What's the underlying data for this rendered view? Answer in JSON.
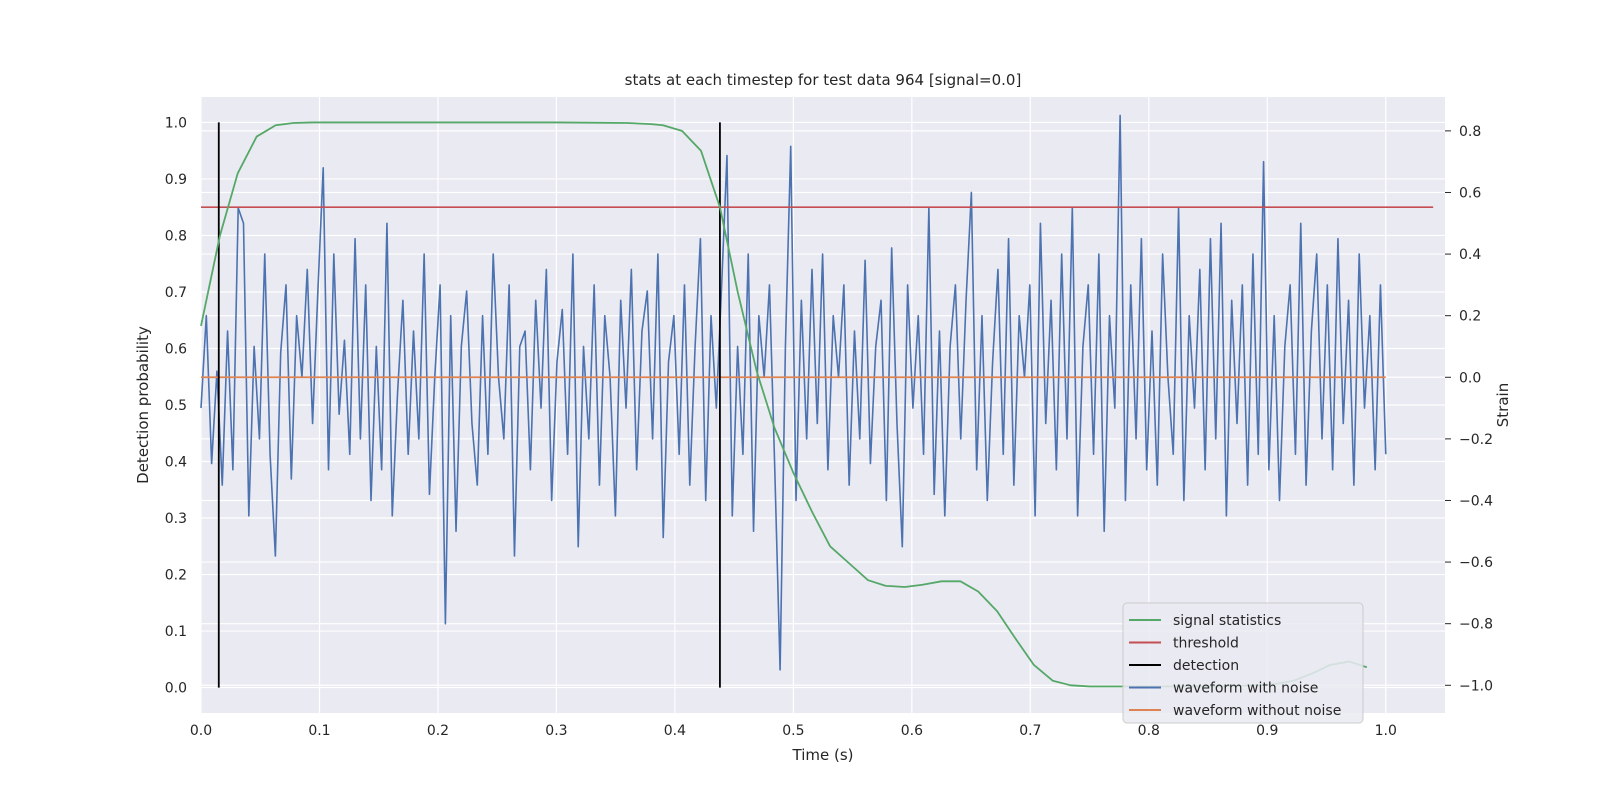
{
  "chart_data": {
    "type": "line",
    "title": "stats at each timestep for test data 964 [signal=0.0]",
    "xlabel": "Time (s)",
    "ylabel_left": "Detection probability",
    "ylabel_right": "Strain",
    "xlim": [
      0.0,
      1.05
    ],
    "ylim_left": [
      -0.045,
      1.045
    ],
    "ylim_right": [
      -1.09,
      0.91
    ],
    "x_ticks": [
      "0.0",
      "0.1",
      "0.2",
      "0.3",
      "0.4",
      "0.5",
      "0.6",
      "0.7",
      "0.8",
      "0.9",
      "1.0"
    ],
    "y_left_ticks": [
      "0.0",
      "0.1",
      "0.2",
      "0.3",
      "0.4",
      "0.5",
      "0.6",
      "0.7",
      "0.8",
      "0.9",
      "1.0"
    ],
    "y_right_ticks": [
      "−1.0",
      "−0.8",
      "−0.6",
      "−0.4",
      "−0.2",
      "0.0",
      "0.2",
      "0.4",
      "0.6",
      "0.8"
    ],
    "grid": true,
    "legend_position": "lower-right",
    "series": [
      {
        "name": "signal statistics",
        "axis": "left",
        "color": "#55a868",
        "x": [
          0.0,
          0.016,
          0.031,
          0.047,
          0.063,
          0.078,
          0.094,
          0.125,
          0.2,
          0.3,
          0.36,
          0.38,
          0.39,
          0.406,
          0.422,
          0.438,
          0.453,
          0.469,
          0.484,
          0.5,
          0.516,
          0.531,
          0.547,
          0.563,
          0.578,
          0.594,
          0.609,
          0.625,
          0.641,
          0.656,
          0.672,
          0.688,
          0.703,
          0.719,
          0.734,
          0.75,
          0.766,
          0.781,
          0.797,
          0.813,
          0.828,
          0.844,
          0.859,
          0.875,
          0.891,
          0.906,
          0.922,
          0.938,
          0.953,
          0.969,
          0.984
        ],
        "values": [
          0.64,
          0.8,
          0.91,
          0.975,
          0.995,
          0.999,
          1.0,
          1.0,
          1.0,
          1.0,
          0.999,
          0.997,
          0.995,
          0.985,
          0.95,
          0.85,
          0.7,
          0.56,
          0.46,
          0.38,
          0.31,
          0.25,
          0.22,
          0.19,
          0.18,
          0.178,
          0.182,
          0.188,
          0.188,
          0.17,
          0.135,
          0.085,
          0.04,
          0.012,
          0.004,
          0.002,
          0.002,
          0.002,
          0.002,
          0.002,
          0.002,
          0.002,
          0.002,
          0.003,
          0.004,
          0.006,
          0.012,
          0.025,
          0.04,
          0.046,
          0.036
        ]
      },
      {
        "name": "threshold",
        "axis": "left",
        "color": "#c44e52",
        "x": [
          0.0,
          1.04
        ],
        "values": [
          0.85,
          0.85
        ]
      },
      {
        "name": "detection",
        "axis": "left",
        "color": "#000000",
        "x": [
          0.015,
          0.438
        ],
        "ymin": 0.0,
        "ymax": 1.0
      },
      {
        "name": "waveform with noise",
        "axis": "right",
        "color": "#4c72b0",
        "x_start": 0.0,
        "x_end": 1.0,
        "values": [
          -0.1,
          0.2,
          -0.28,
          0.02,
          -0.35,
          0.15,
          -0.3,
          0.55,
          0.5,
          -0.45,
          0.1,
          -0.2,
          0.4,
          -0.25,
          -0.58,
          0.08,
          0.3,
          -0.33,
          0.2,
          0.0,
          0.35,
          -0.15,
          0.28,
          0.68,
          -0.3,
          0.4,
          -0.12,
          0.12,
          -0.25,
          0.45,
          -0.2,
          0.3,
          -0.4,
          0.1,
          -0.3,
          0.5,
          -0.45,
          -0.05,
          0.25,
          -0.25,
          0.15,
          -0.2,
          0.4,
          -0.38,
          0.0,
          0.3,
          -0.8,
          0.2,
          -0.5,
          0.1,
          0.28,
          -0.15,
          -0.35,
          0.2,
          -0.25,
          0.4,
          0.0,
          -0.2,
          0.3,
          -0.58,
          0.1,
          0.15,
          -0.3,
          0.25,
          -0.1,
          0.35,
          -0.4,
          0.05,
          0.22,
          -0.25,
          0.4,
          -0.55,
          0.1,
          -0.2,
          0.3,
          -0.35,
          0.2,
          0.0,
          -0.45,
          0.25,
          -0.1,
          0.35,
          -0.3,
          0.15,
          0.28,
          -0.2,
          0.4,
          -0.52,
          0.05,
          0.2,
          -0.25,
          0.3,
          -0.35,
          0.1,
          0.45,
          -0.4,
          0.2,
          -0.1,
          0.3,
          0.72,
          -0.45,
          0.1,
          -0.25,
          0.4,
          -0.5,
          0.2,
          0.0,
          0.3,
          -0.3,
          -0.95,
          0.1,
          0.75,
          -0.4,
          0.25,
          -0.2,
          0.35,
          -0.15,
          0.4,
          -0.3,
          0.2,
          0.0,
          0.3,
          -0.35,
          0.15,
          -0.2,
          0.38,
          -0.28,
          0.1,
          0.25,
          -0.4,
          0.42,
          -0.15,
          -0.55,
          0.3,
          -0.1,
          0.2,
          -0.25,
          0.55,
          -0.38,
          0.15,
          -0.45,
          0.1,
          0.3,
          -0.2,
          0.25,
          0.6,
          -0.3,
          0.2,
          -0.4,
          0.05,
          0.35,
          -0.25,
          0.45,
          -0.35,
          0.2,
          0.0,
          0.3,
          -0.45,
          0.5,
          -0.15,
          0.25,
          -0.3,
          0.4,
          -0.2,
          0.55,
          -0.45,
          0.1,
          0.3,
          -0.25,
          0.4,
          -0.5,
          0.2,
          -0.1,
          0.85,
          -0.4,
          0.3,
          -0.2,
          0.45,
          -0.3,
          0.15,
          -0.35,
          0.4,
          0.0,
          -0.25,
          0.55,
          -0.4,
          0.2,
          -0.1,
          0.35,
          -0.3,
          0.45,
          -0.2,
          0.5,
          -0.45,
          0.25,
          -0.15,
          0.3,
          -0.35,
          0.4,
          -0.25,
          0.7,
          -0.3,
          0.2,
          -0.4,
          0.1,
          0.3,
          -0.25,
          0.5,
          -0.35,
          0.15,
          0.4,
          -0.2,
          0.3,
          -0.3,
          0.45,
          -0.15,
          0.25,
          -0.35,
          0.4,
          -0.1,
          0.2,
          -0.3,
          0.3,
          -0.25
        ],
        "y_min": -1.0,
        "y_max": 0.8
      },
      {
        "name": "waveform without noise",
        "axis": "right",
        "color": "#dd8452",
        "x": [
          0.0,
          1.0
        ],
        "values": [
          0.0,
          0.0
        ]
      }
    ]
  },
  "legend": [
    {
      "label": "signal statistics",
      "color": "#55a868"
    },
    {
      "label": "threshold",
      "color": "#c44e52"
    },
    {
      "label": "detection",
      "color": "#000000"
    },
    {
      "label": "waveform with noise",
      "color": "#4c72b0"
    },
    {
      "label": "waveform without noise",
      "color": "#dd8452"
    }
  ],
  "colors": {
    "plot_background": "#eaeaf2",
    "grid": "#ffffff",
    "text": "#262626"
  }
}
